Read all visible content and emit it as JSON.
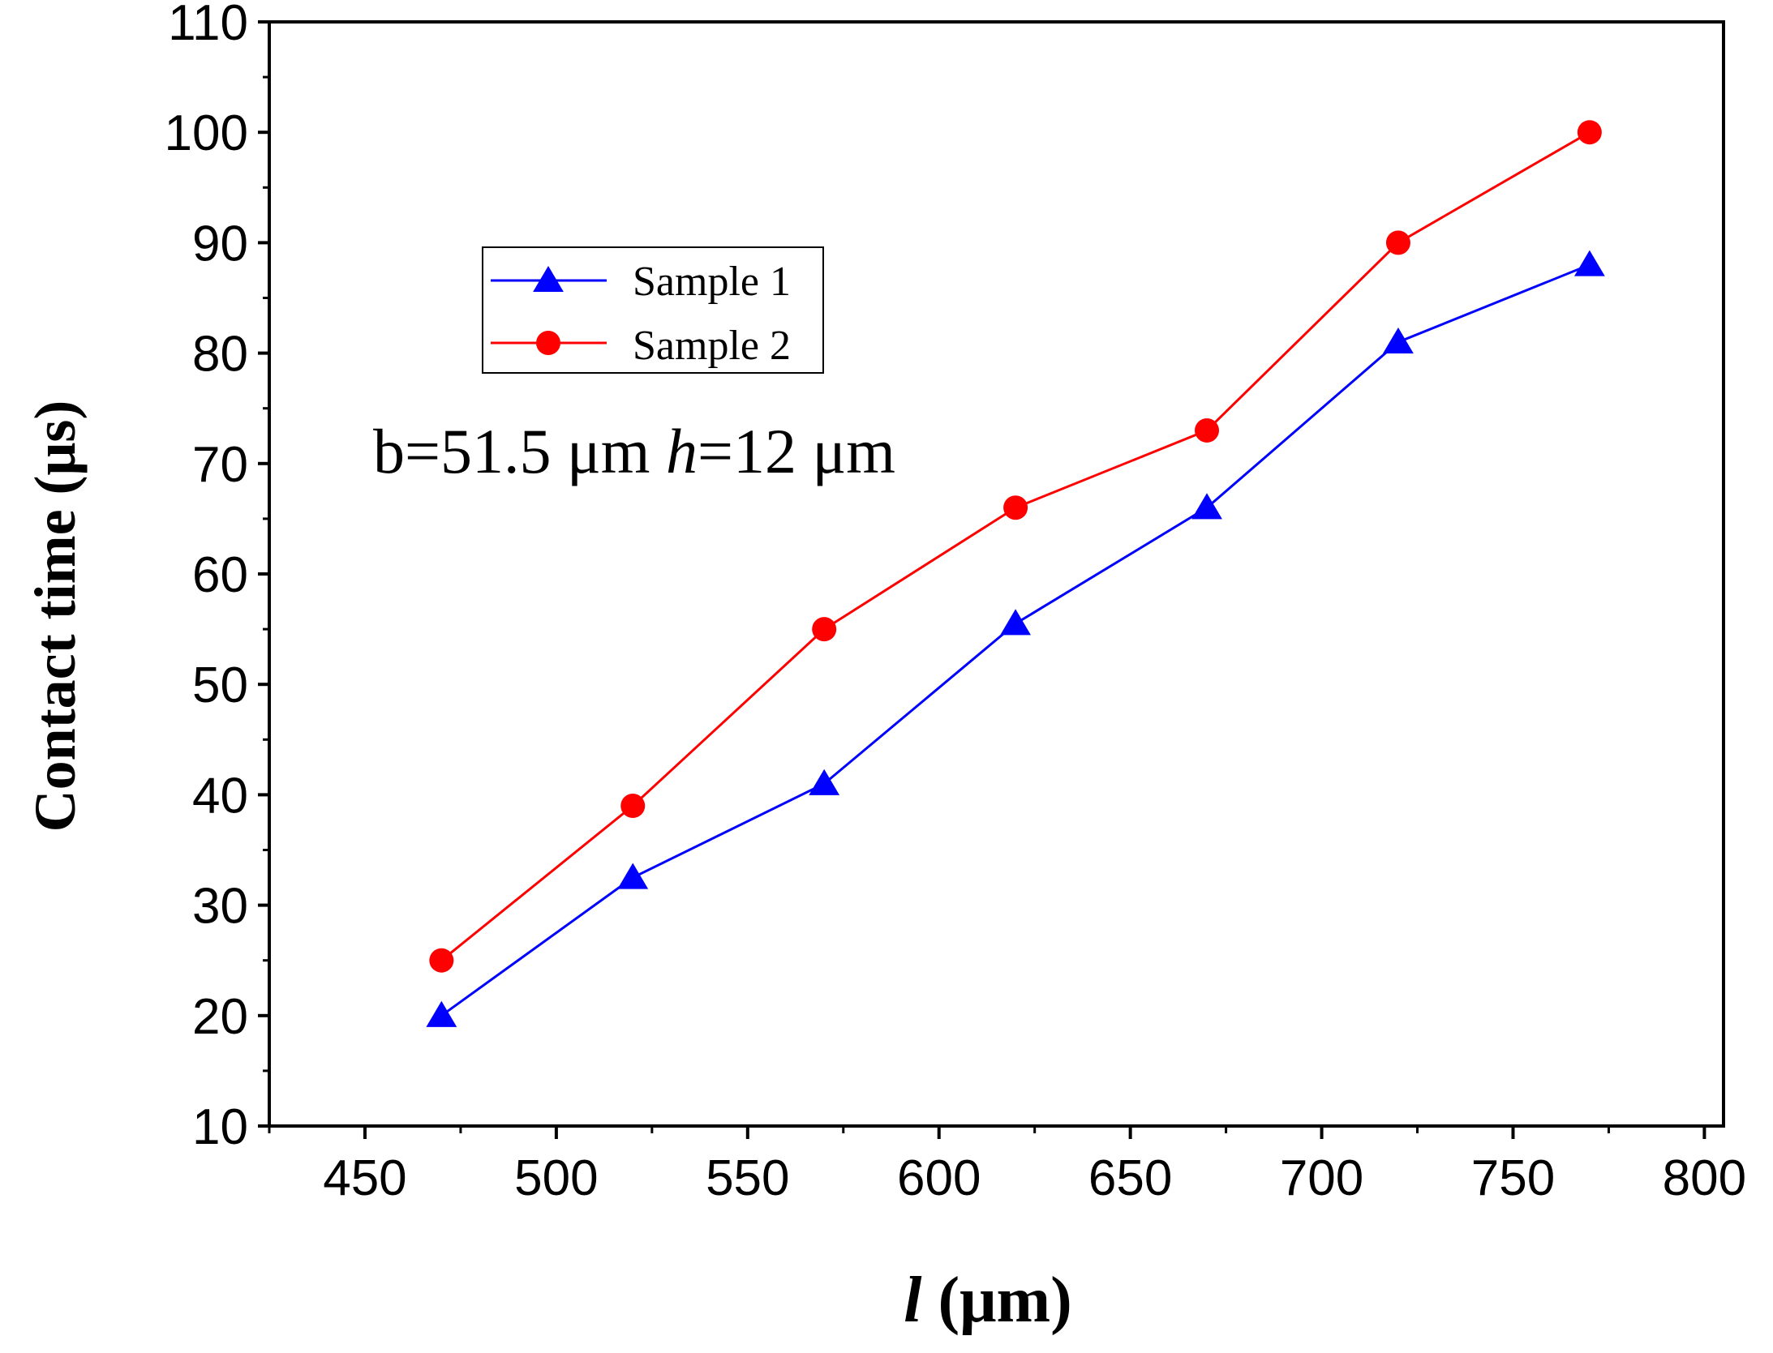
{
  "chart_data": {
    "type": "line",
    "title": "",
    "xlabel_var": "l",
    "xlabel_unit": " (μm)",
    "ylabel": "Contact time  (μs)",
    "xlim": [
      425,
      805
    ],
    "ylim": [
      10,
      110
    ],
    "xticks": [
      450,
      500,
      550,
      600,
      650,
      700,
      750,
      800
    ],
    "yticks": [
      10,
      20,
      30,
      40,
      50,
      60,
      70,
      80,
      90,
      100,
      110
    ],
    "x": [
      470,
      520,
      570,
      620,
      670,
      720,
      770
    ],
    "series": [
      {
        "name": "Sample 1",
        "color": "#0000ff",
        "marker": "triangle",
        "values": [
          20,
          32.5,
          41,
          55.5,
          66,
          81,
          88
        ]
      },
      {
        "name": "Sample 2",
        "color": "#ff0000",
        "marker": "circle",
        "values": [
          25,
          39,
          55,
          66,
          73,
          90,
          100
        ]
      }
    ],
    "legend_position": "upper-left",
    "annotation": {
      "part1": "b=51.5 μm  ",
      "var": "h",
      "part2": "=12 μm"
    }
  }
}
